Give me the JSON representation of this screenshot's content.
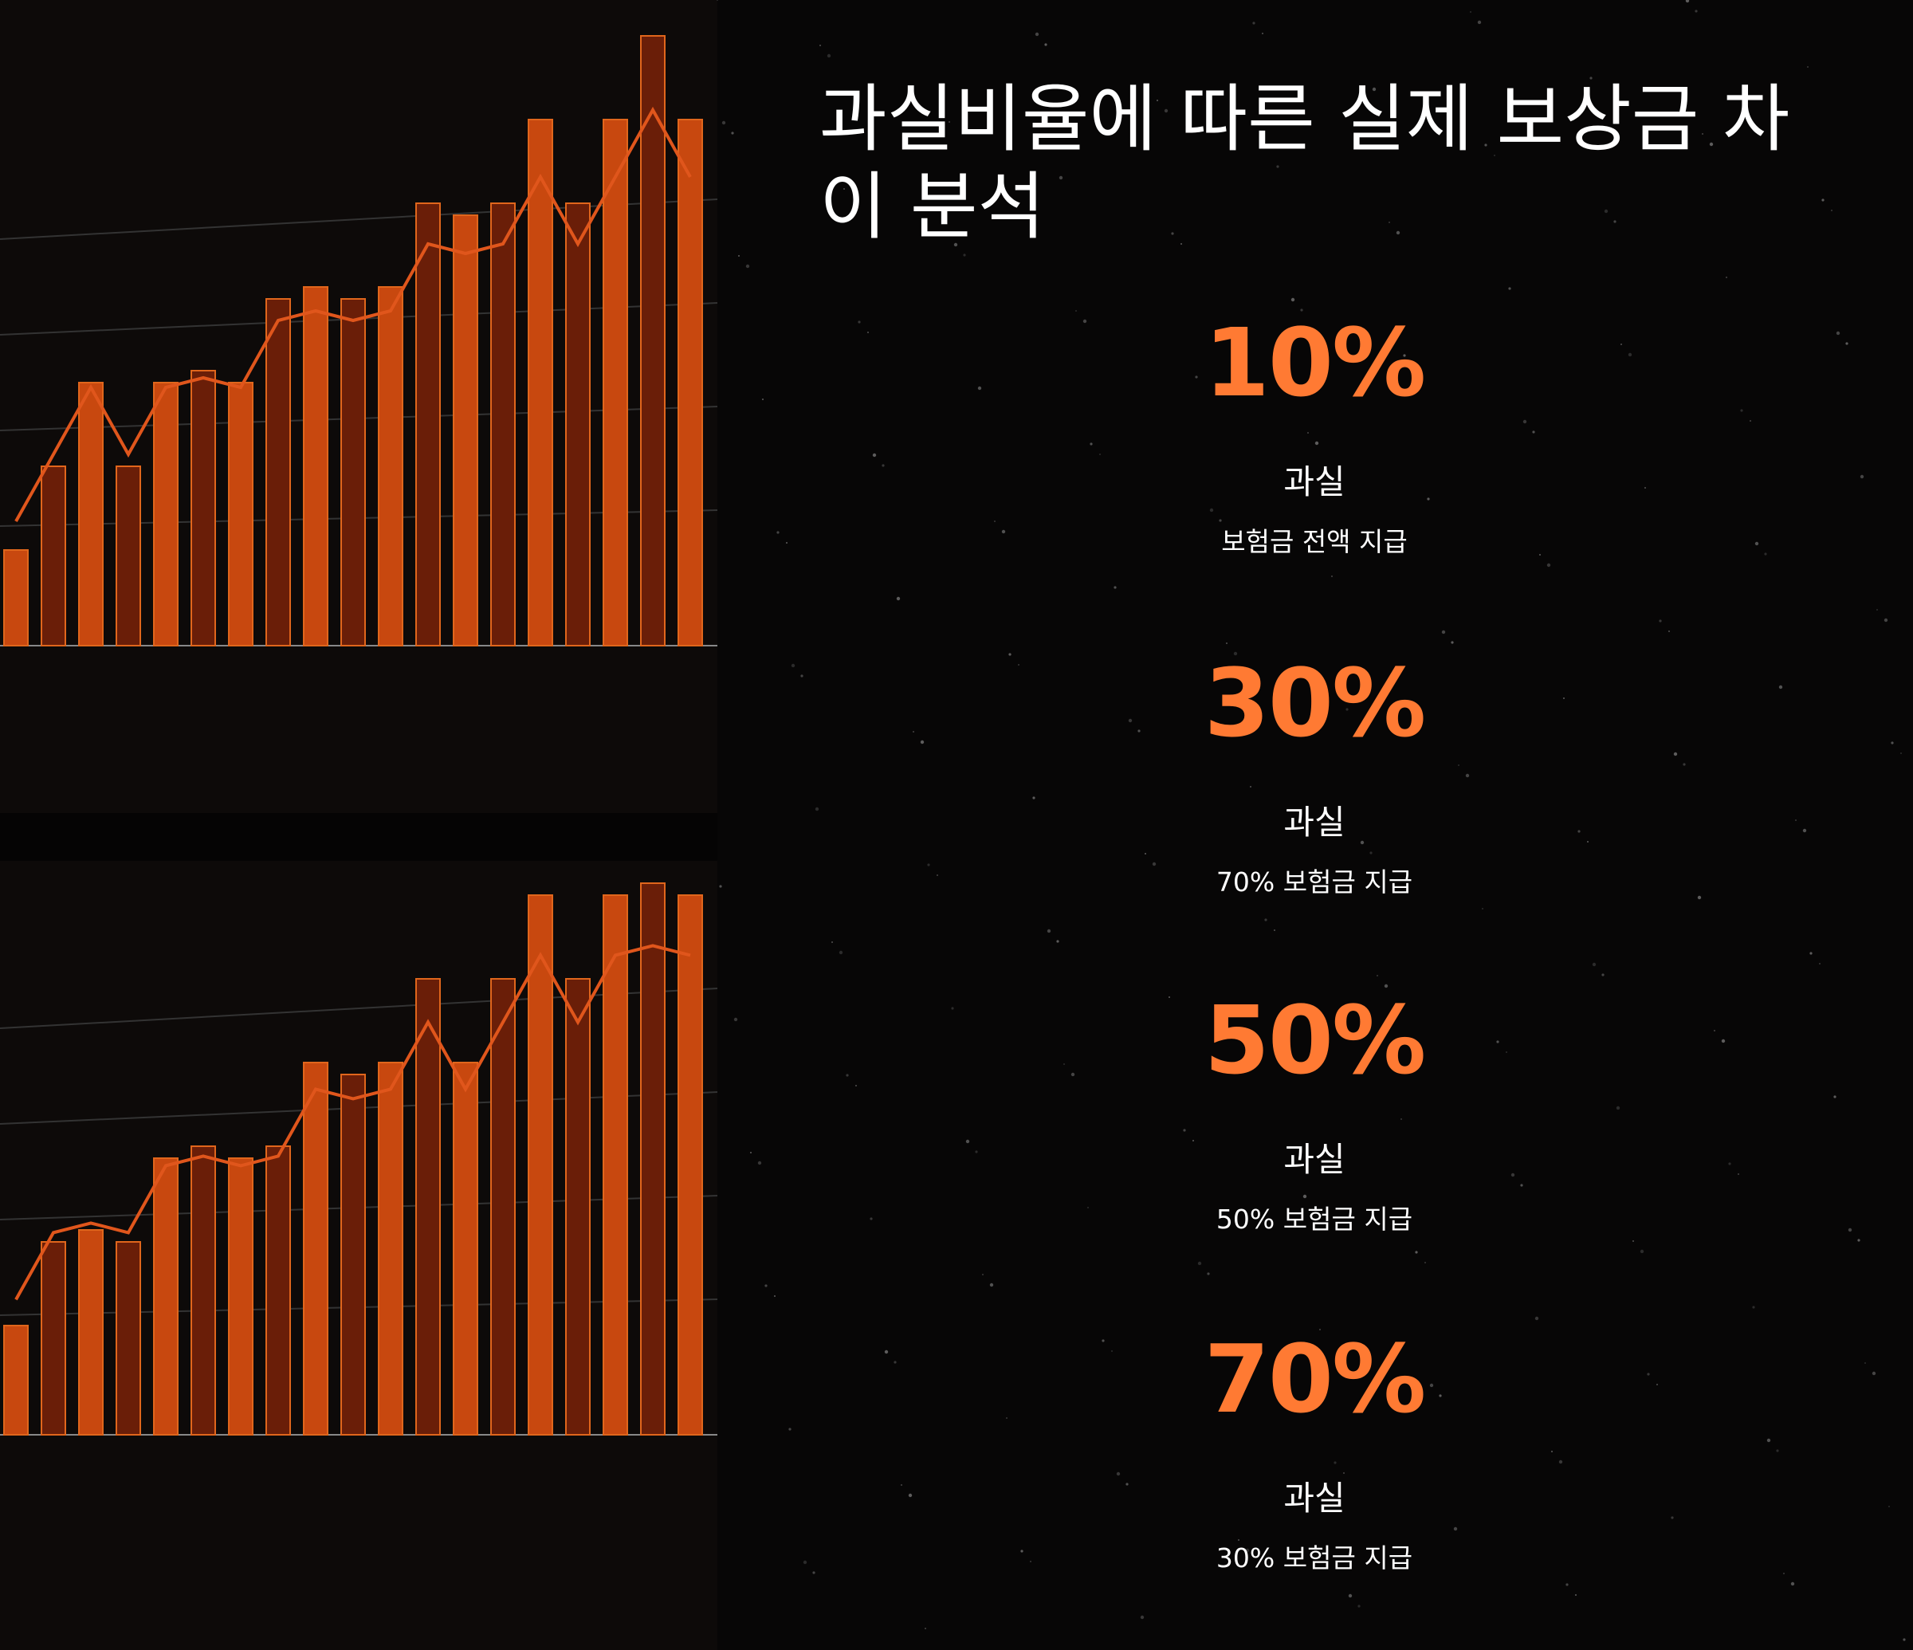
{
  "header": {
    "title": "과실비율에 따른 실제 보상금 차이 분석"
  },
  "stats": [
    {
      "value": "10%",
      "label": "과실",
      "desc": "보험금 전액 지급"
    },
    {
      "value": "30%",
      "label": "과실",
      "desc": "70% 보험금 지급"
    },
    {
      "value": "50%",
      "label": "과실",
      "desc": "50% 보험금 지급"
    },
    {
      "value": "70%",
      "label": "과실",
      "desc": "30% 보험금 지급"
    }
  ]
}
